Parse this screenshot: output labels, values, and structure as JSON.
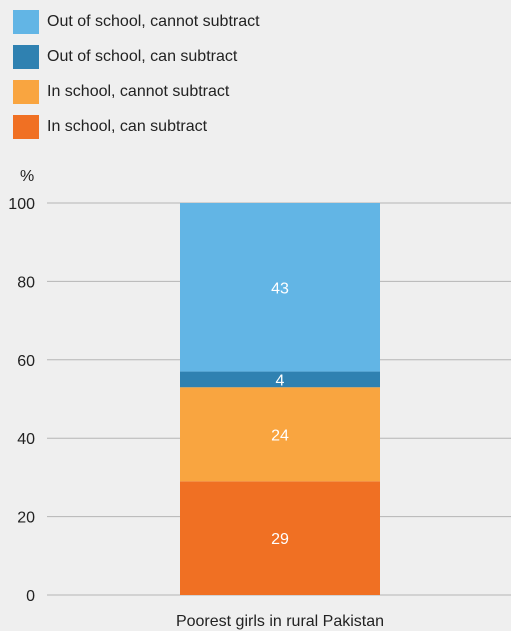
{
  "chart_data": {
    "type": "bar",
    "stacked": true,
    "categories": [
      "Poorest girls in rural Pakistan"
    ],
    "series": [
      {
        "name": "In school, can subtract",
        "values": [
          29
        ],
        "color": "#f07023"
      },
      {
        "name": "In school, cannot subtract",
        "values": [
          24
        ],
        "color": "#f9a540"
      },
      {
        "name": "Out of school, can subtract",
        "values": [
          4
        ],
        "color": "#2f81b1"
      },
      {
        "name": "Out of school, cannot subtract",
        "values": [
          43
        ],
        "color": "#62b5e5"
      }
    ],
    "legend_order": [
      "Out of school, cannot subtract",
      "Out of school, can subtract",
      "In school, cannot subtract",
      "In school, can subtract"
    ],
    "legend_position": "top-left",
    "yticks": [
      0,
      20,
      40,
      60,
      80,
      100
    ],
    "ylim": [
      0,
      100
    ],
    "y_unit": "%",
    "grid": true
  }
}
